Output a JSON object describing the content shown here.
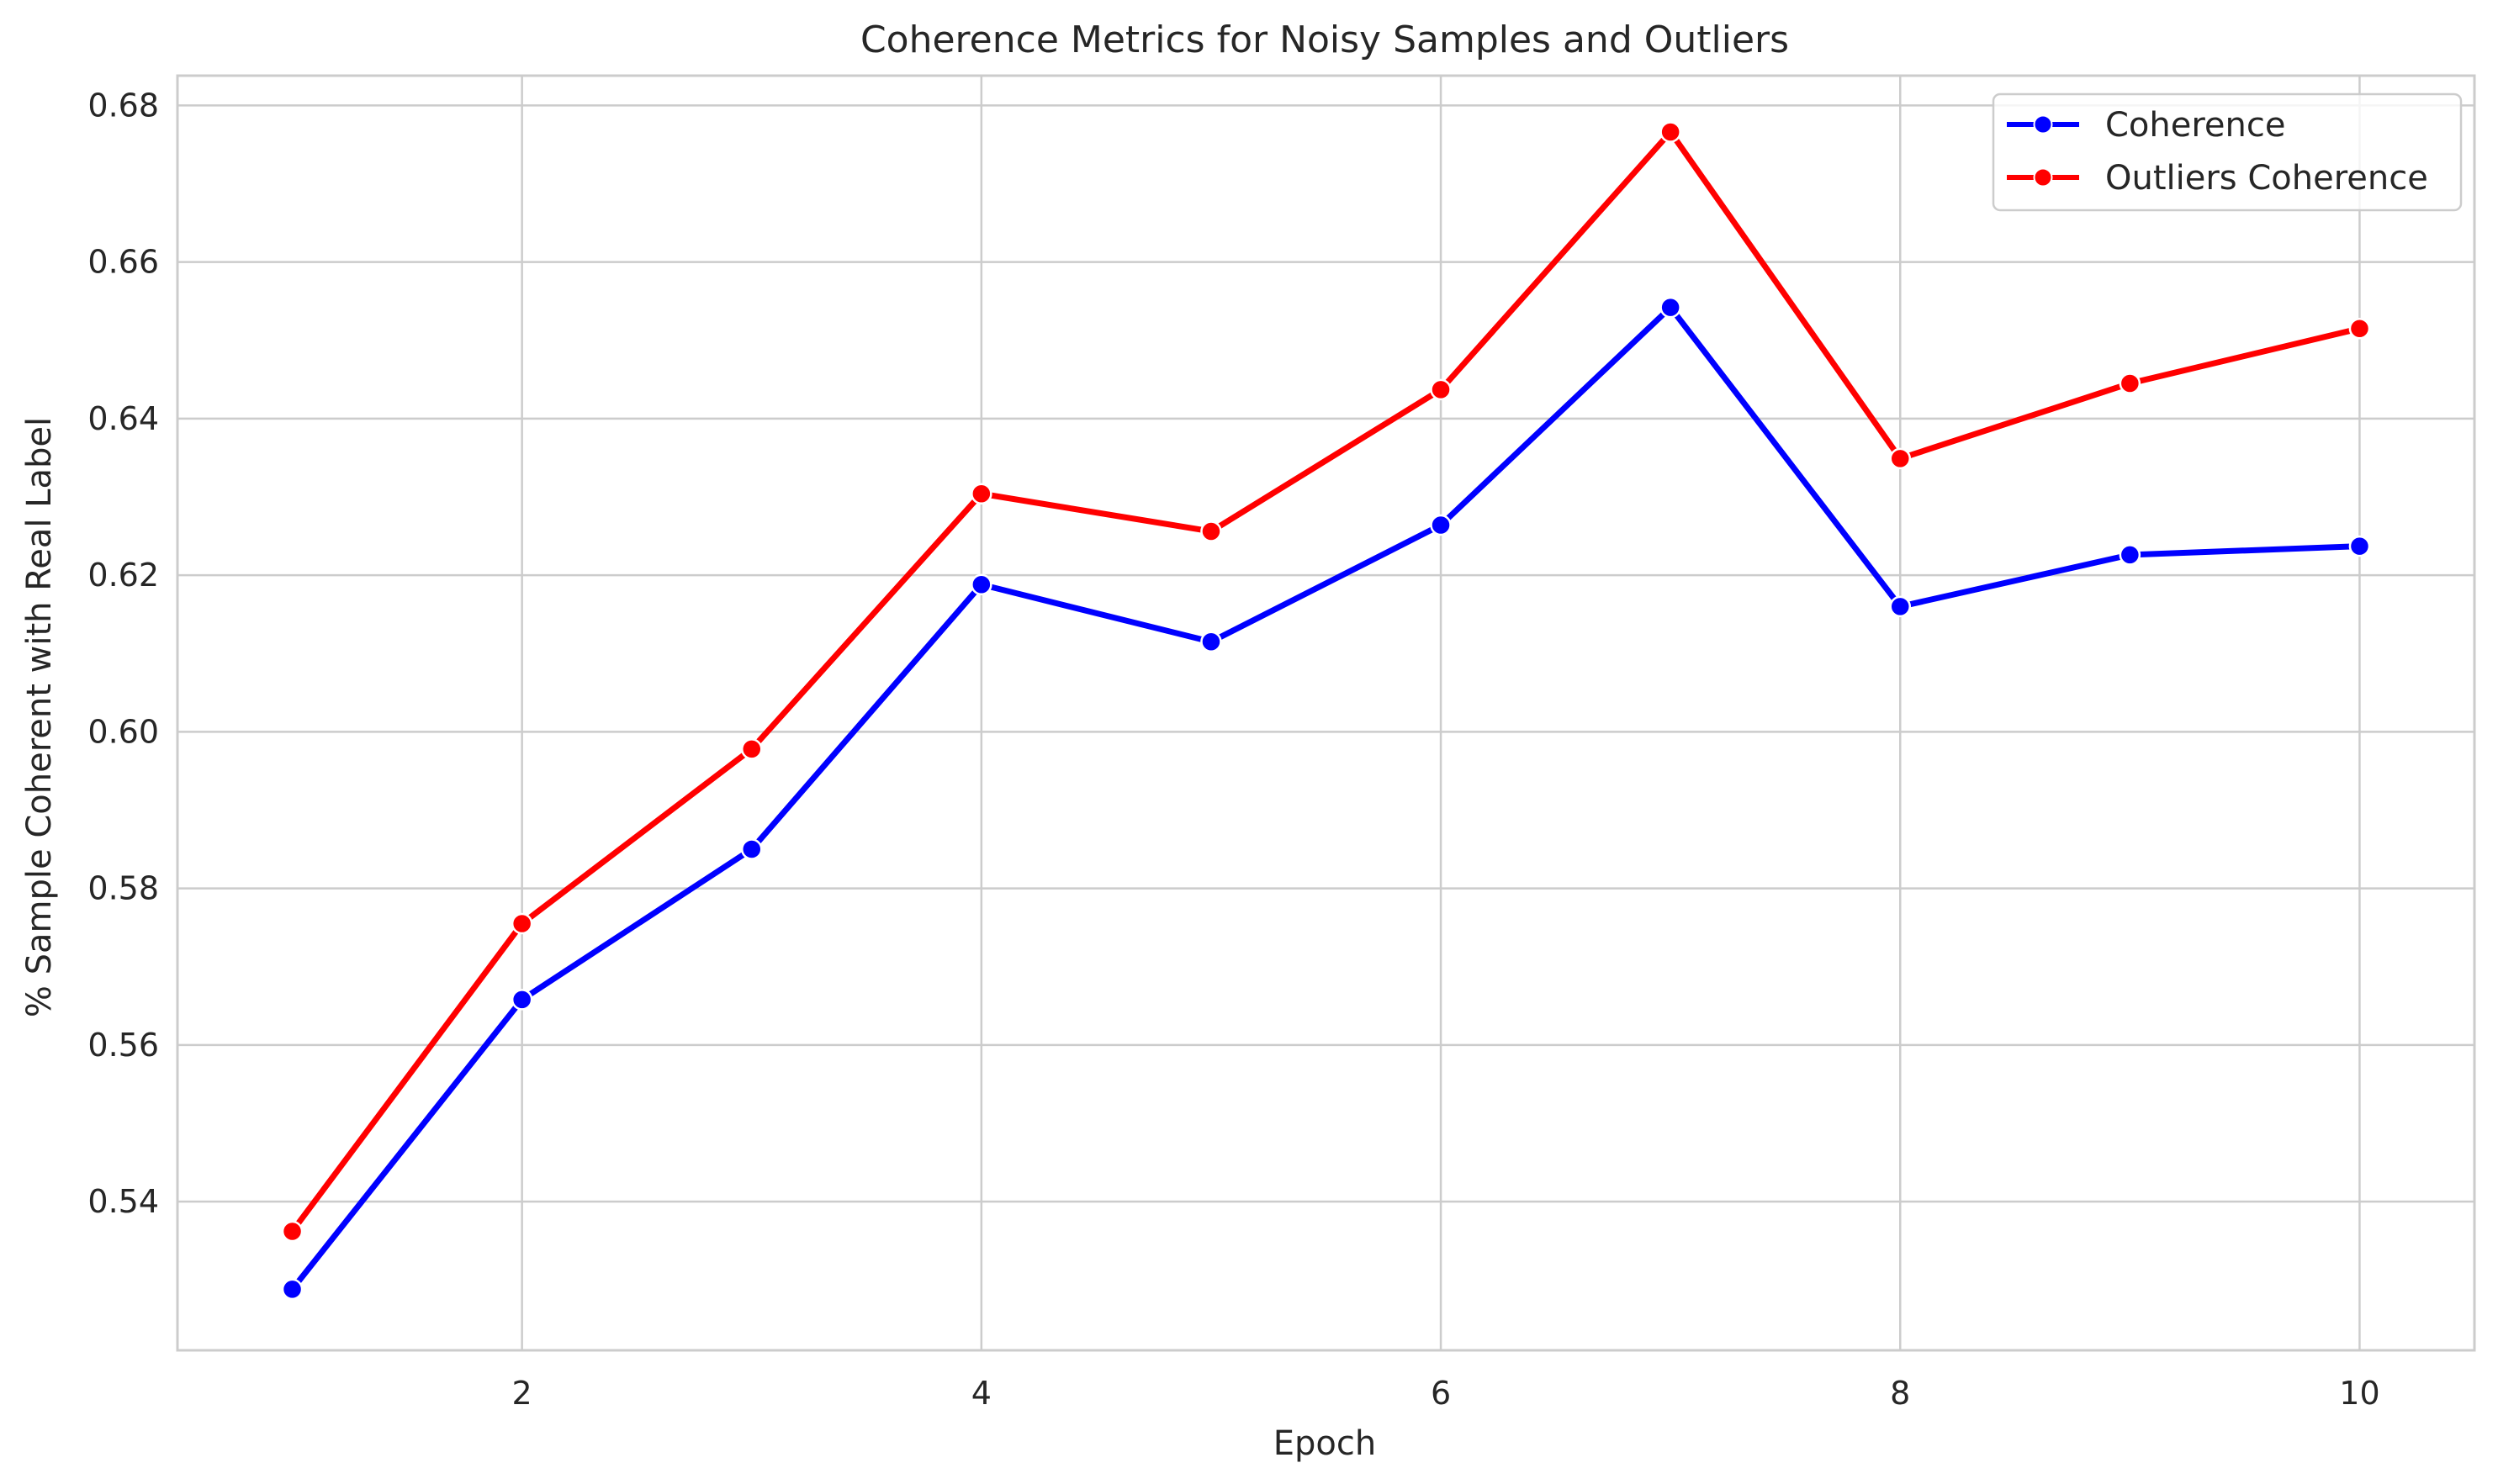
{
  "chart_data": {
    "type": "line",
    "title": "Coherence Metrics for Noisy Samples and Outliers",
    "xlabel": "Epoch",
    "ylabel": "% Sample Coherent with Real Label",
    "x": [
      1,
      2,
      3,
      4,
      5,
      6,
      7,
      8,
      9,
      10
    ],
    "xlim": [
      0.5,
      10.5
    ],
    "ylim": [
      0.521,
      0.6838
    ],
    "xticks": [
      2,
      4,
      6,
      8,
      10
    ],
    "xtick_labels": [
      "2",
      "4",
      "6",
      "8",
      "10"
    ],
    "yticks": [
      0.54,
      0.56,
      0.58,
      0.6,
      0.62,
      0.64,
      0.66,
      0.68
    ],
    "ytick_labels": [
      "0.54",
      "0.56",
      "0.58",
      "0.60",
      "0.62",
      "0.64",
      "0.66",
      "0.68"
    ],
    "grid": true,
    "legend_position": "top-right",
    "series": [
      {
        "name": "Coherence",
        "color": "#0000ff",
        "marker": "circle",
        "values": [
          0.5288,
          0.5658,
          0.585,
          0.6188,
          0.6115,
          0.6264,
          0.6542,
          0.616,
          0.6226,
          0.6237
        ]
      },
      {
        "name": "Outliers Coherence",
        "color": "#ff0000",
        "marker": "circle",
        "values": [
          0.5362,
          0.5755,
          0.5978,
          0.6304,
          0.6256,
          0.6437,
          0.6766,
          0.6349,
          0.6445,
          0.6515
        ]
      }
    ]
  }
}
